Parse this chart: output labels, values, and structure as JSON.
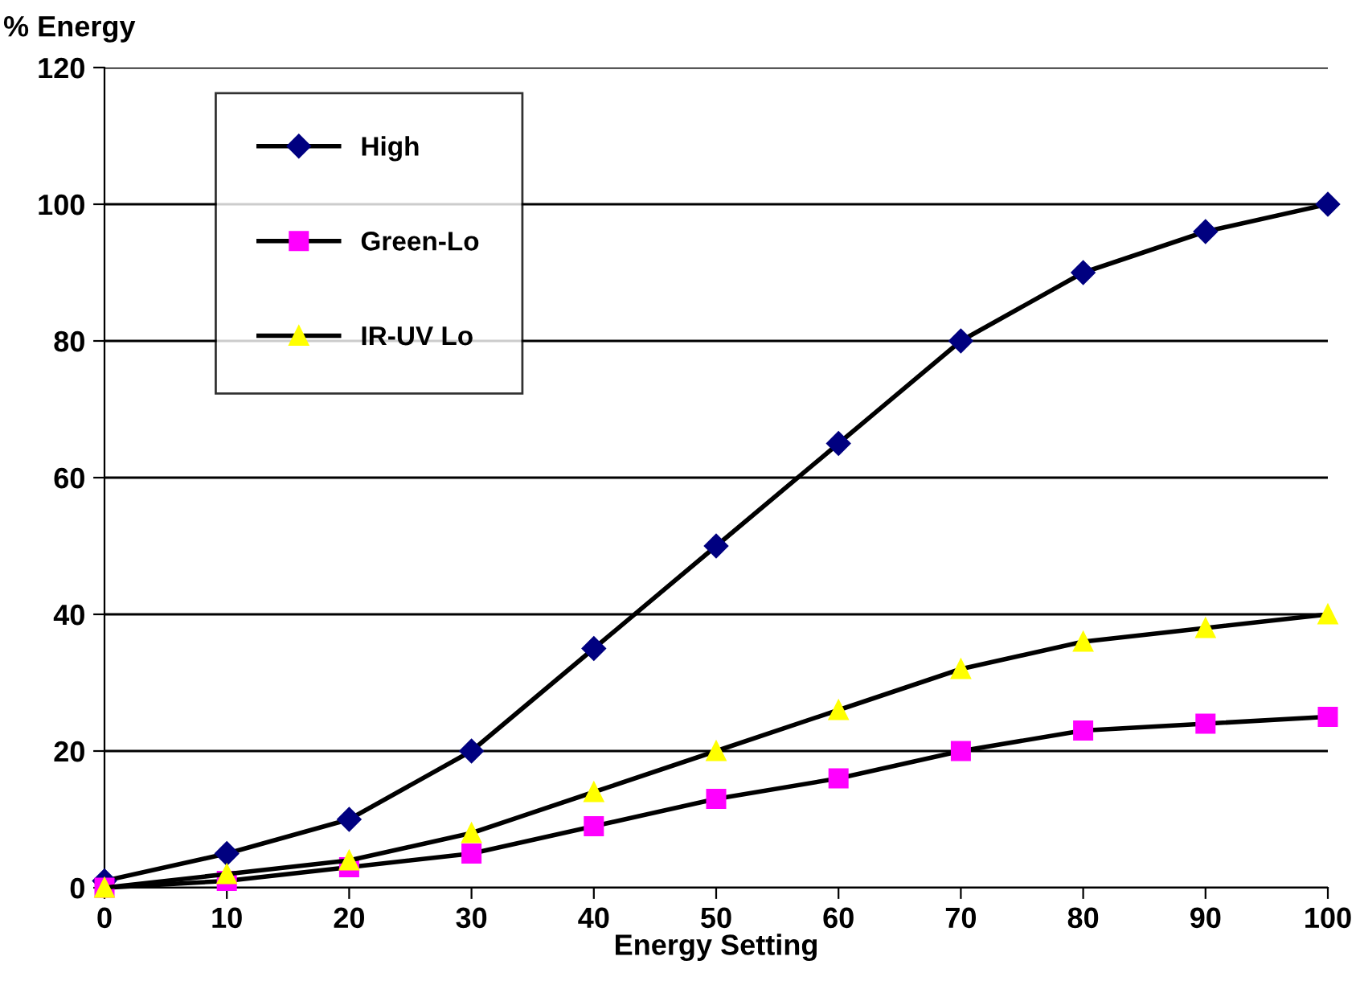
{
  "chart_data": {
    "type": "line",
    "ylabel": "% Energy",
    "xlabel": "Energy Setting",
    "x": [
      0,
      10,
      20,
      30,
      40,
      50,
      60,
      70,
      80,
      90,
      100
    ],
    "xlim": [
      0,
      100
    ],
    "xticks": [
      0,
      10,
      20,
      30,
      40,
      50,
      60,
      70,
      80,
      90,
      100
    ],
    "ylim": [
      0,
      120
    ],
    "yticks": [
      0,
      20,
      40,
      60,
      80,
      100,
      120
    ],
    "grid": "y",
    "legend": "top left",
    "line_style": "solid",
    "series": [
      {
        "name": "High",
        "color": "#000080",
        "marker": "diamond",
        "values": [
          1,
          5,
          10,
          20,
          35,
          50,
          65,
          80,
          90,
          96,
          100
        ]
      },
      {
        "name": "Green-Lo",
        "color": "#ff00ff",
        "marker": "square",
        "values": [
          0,
          1,
          3,
          5,
          9,
          13,
          16,
          20,
          23,
          24,
          25
        ]
      },
      {
        "name": "IR-UV Lo",
        "color": "#ffff00",
        "marker": "triangle",
        "values": [
          0,
          2,
          4,
          8,
          14,
          20,
          26,
          32,
          36,
          38,
          40
        ]
      }
    ]
  }
}
